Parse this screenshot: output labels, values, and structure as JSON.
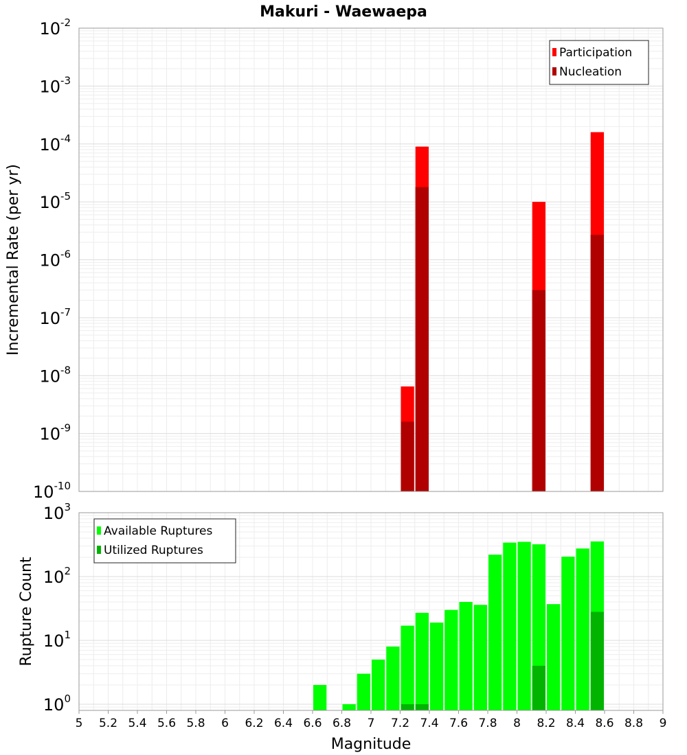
{
  "chart_data": [
    {
      "type": "bar",
      "title": "Makuri - Waewaepa",
      "xlabel": "",
      "ylabel": "Incremental Rate (per yr)",
      "y_scale": "log",
      "ylim": [
        1e-10,
        0.01
      ],
      "xlim": [
        5,
        9
      ],
      "bar_width": 0.1,
      "grid": true,
      "legend_position": "top-right",
      "y_ticks": [
        {
          "base": "10",
          "exp": "-10",
          "value": 1e-10
        },
        {
          "base": "10",
          "exp": "-9",
          "value": 1e-09
        },
        {
          "base": "10",
          "exp": "-8",
          "value": 1e-08
        },
        {
          "base": "10",
          "exp": "-7",
          "value": 1e-07
        },
        {
          "base": "10",
          "exp": "-6",
          "value": 1e-06
        },
        {
          "base": "10",
          "exp": "-5",
          "value": 1e-05
        },
        {
          "base": "10",
          "exp": "-4",
          "value": 0.0001
        },
        {
          "base": "10",
          "exp": "-3",
          "value": 0.001
        },
        {
          "base": "10",
          "exp": "-2",
          "value": 0.01
        }
      ],
      "series": [
        {
          "name": "Participation",
          "color": "#ff0000",
          "points": [
            {
              "x": 7.25,
              "y": 6.5e-09
            },
            {
              "x": 7.35,
              "y": 9e-05
            },
            {
              "x": 8.15,
              "y": 1e-05
            },
            {
              "x": 8.55,
              "y": 0.00016
            }
          ]
        },
        {
          "name": "Nucleation",
          "color": "#b00000",
          "points": [
            {
              "x": 7.25,
              "y": 1.6e-09
            },
            {
              "x": 7.35,
              "y": 1.8e-05
            },
            {
              "x": 8.15,
              "y": 3e-07
            },
            {
              "x": 8.55,
              "y": 2.7e-06
            }
          ]
        }
      ]
    },
    {
      "type": "bar",
      "title": "",
      "xlabel": "Magnitude",
      "ylabel": "Rupture Count",
      "y_scale": "log",
      "ylim": [
        0.8,
        1000
      ],
      "xlim": [
        5,
        9
      ],
      "bar_width": 0.1,
      "grid": true,
      "legend_position": "top-left",
      "y_ticks": [
        {
          "base": "10",
          "exp": "0",
          "value": 1
        },
        {
          "base": "10",
          "exp": "1",
          "value": 10
        },
        {
          "base": "10",
          "exp": "2",
          "value": 100
        },
        {
          "base": "10",
          "exp": "3",
          "value": 1000
        }
      ],
      "x_ticks": [
        "5",
        "5.2",
        "5.4",
        "5.6",
        "5.8",
        "6",
        "6.2",
        "6.4",
        "6.6",
        "6.8",
        "7",
        "7.2",
        "7.4",
        "7.6",
        "7.8",
        "8",
        "8.2",
        "8.4",
        "8.6",
        "8.8",
        "9"
      ],
      "series": [
        {
          "name": "Available Ruptures",
          "color": "#00ff00",
          "points": [
            {
              "x": 6.65,
              "y": 2
            },
            {
              "x": 6.85,
              "y": 1
            },
            {
              "x": 6.95,
              "y": 3
            },
            {
              "x": 7.05,
              "y": 5
            },
            {
              "x": 7.15,
              "y": 8
            },
            {
              "x": 7.25,
              "y": 17
            },
            {
              "x": 7.35,
              "y": 27
            },
            {
              "x": 7.45,
              "y": 19
            },
            {
              "x": 7.55,
              "y": 30
            },
            {
              "x": 7.65,
              "y": 40
            },
            {
              "x": 7.75,
              "y": 36
            },
            {
              "x": 7.85,
              "y": 220
            },
            {
              "x": 7.95,
              "y": 340
            },
            {
              "x": 8.05,
              "y": 350
            },
            {
              "x": 8.15,
              "y": 320
            },
            {
              "x": 8.25,
              "y": 37
            },
            {
              "x": 8.35,
              "y": 205
            },
            {
              "x": 8.45,
              "y": 275
            },
            {
              "x": 8.55,
              "y": 355
            }
          ]
        },
        {
          "name": "Utilized Ruptures",
          "color": "#00b400",
          "points": [
            {
              "x": 7.25,
              "y": 1
            },
            {
              "x": 7.35,
              "y": 1
            },
            {
              "x": 8.15,
              "y": 4
            },
            {
              "x": 8.55,
              "y": 28
            }
          ]
        }
      ]
    }
  ]
}
